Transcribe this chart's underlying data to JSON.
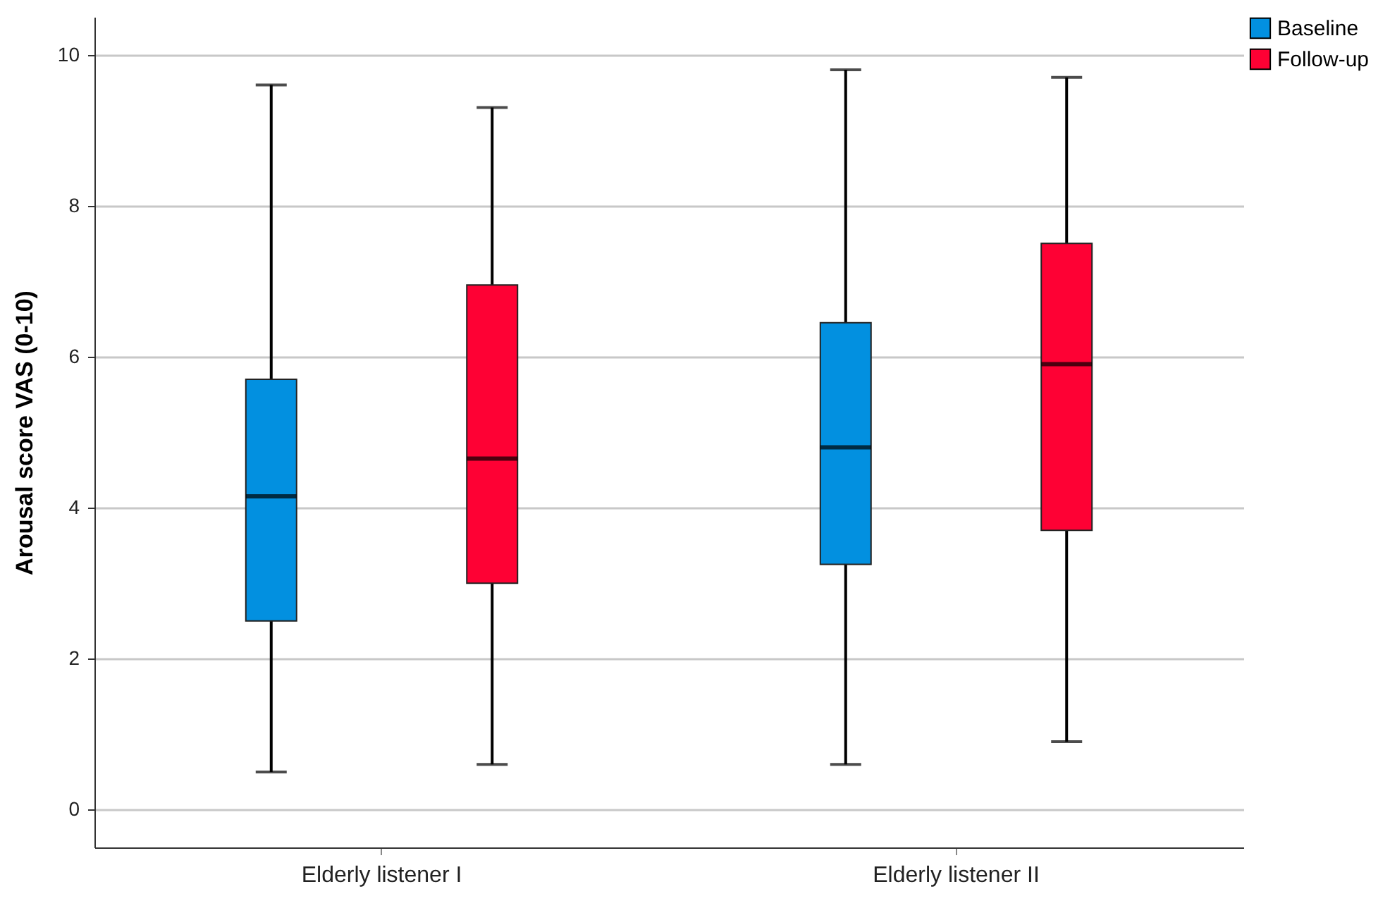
{
  "chart_data": {
    "type": "box",
    "ylabel": "Arousal score VAS (0-10)",
    "categories": [
      "Elderly listener I",
      "Elderly listener II"
    ],
    "series": [
      {
        "name": "Baseline",
        "color": "#0290e0",
        "boxes": [
          {
            "low": 0.5,
            "q1": 2.5,
            "median": 4.15,
            "q3": 5.7,
            "high": 9.6
          },
          {
            "low": 0.6,
            "q1": 3.25,
            "median": 4.8,
            "q3": 6.45,
            "high": 9.8
          }
        ]
      },
      {
        "name": "Follow-up",
        "color": "#fe0134",
        "boxes": [
          {
            "low": 0.6,
            "q1": 3.0,
            "median": 4.65,
            "q3": 6.95,
            "high": 9.3
          },
          {
            "low": 0.9,
            "q1": 3.7,
            "median": 5.9,
            "q3": 7.5,
            "high": 9.7
          }
        ]
      }
    ],
    "ylim": [
      -0.5,
      10.5
    ],
    "yticks": [
      0,
      2,
      4,
      6,
      8,
      10
    ],
    "grid": "y",
    "legend": "top right"
  }
}
